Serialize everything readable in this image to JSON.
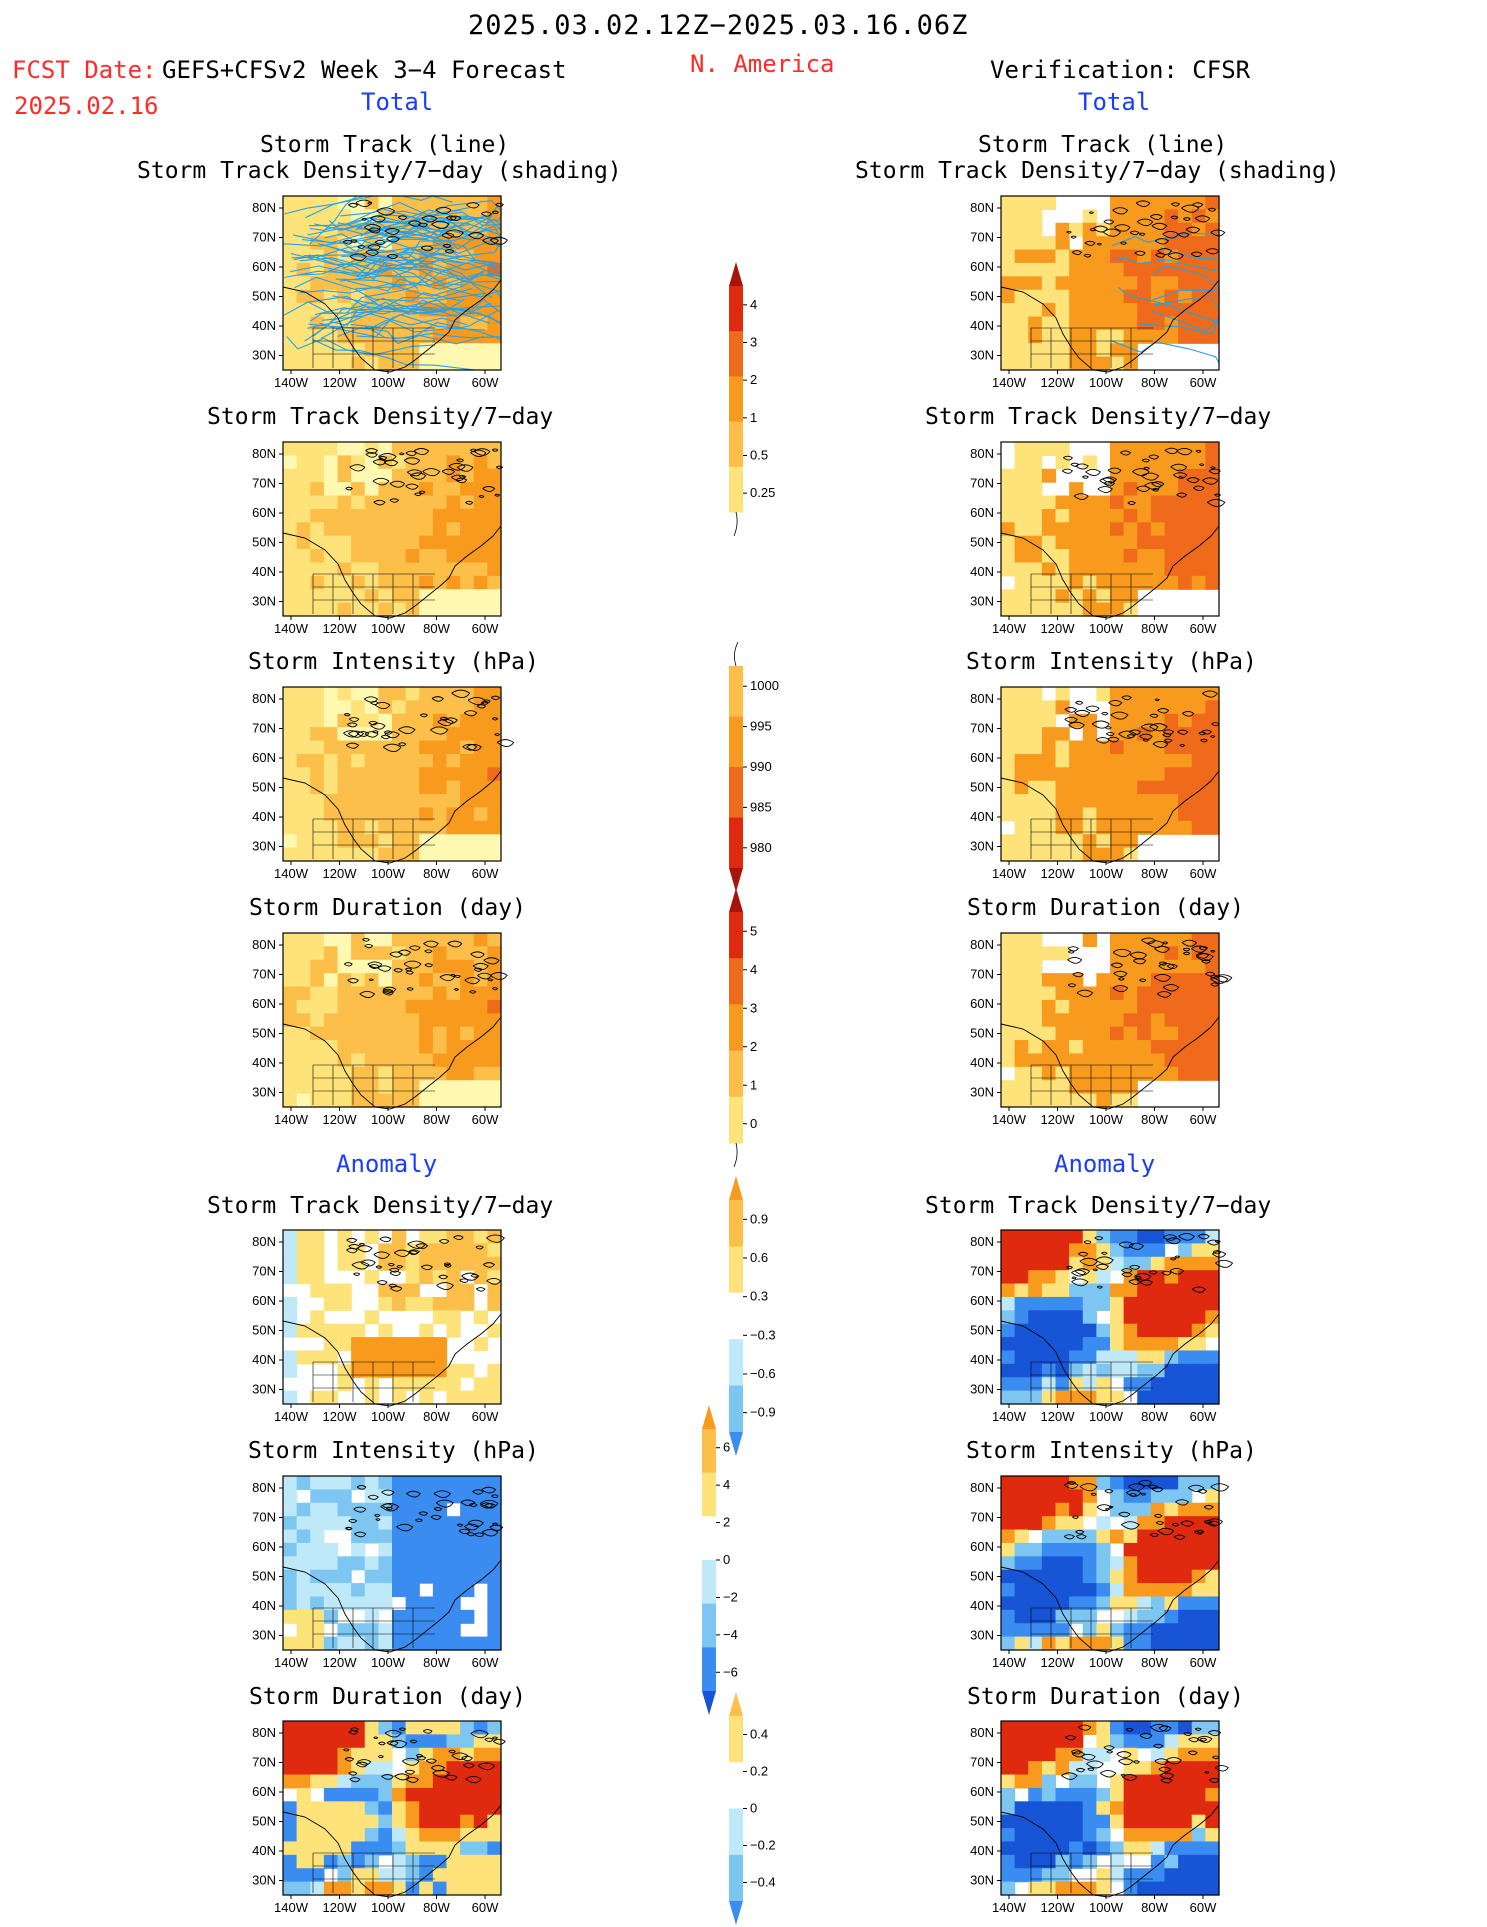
{
  "header": {
    "date_range": "2025.03.02.12Z−2025.03.16.06Z",
    "fcst_label": "FCST Date:",
    "fcst_model": "GEFS+CFSv2 Week 3−4 Forecast",
    "fcst_date": "2025.02.16",
    "region": "N. America",
    "verification": "Verification: CFSR",
    "left_total": "Total",
    "right_total": "Total",
    "left_anomaly": "Anomaly",
    "right_anomaly": "Anomaly"
  },
  "panel_titles": {
    "track_line": "Storm Track (line)",
    "track_shading": "Storm Track Density/7−day (shading)",
    "density": "Storm Track Density/7−day",
    "intensity": "Storm Intensity (hPa)",
    "duration": "Storm Duration (day)"
  },
  "axes": {
    "lat_labels": [
      "80N",
      "70N",
      "60N",
      "50N",
      "40N",
      "30N"
    ],
    "lon_labels": [
      "140W",
      "120W",
      "100W",
      "80W",
      "60W"
    ]
  },
  "colorbars": {
    "density_total": [
      "4",
      "3",
      "2",
      "1",
      "0.5",
      "0.25"
    ],
    "intensity_total": [
      "1000",
      "995",
      "990",
      "985",
      "980"
    ],
    "duration_total": [
      "5",
      "4",
      "3",
      "2",
      "1",
      "0"
    ],
    "density_anom": [
      "0.9",
      "0.6",
      "0.3",
      "−0.3",
      "−0.6",
      "−0.9"
    ],
    "intensity_anom": [
      "6",
      "4",
      "2",
      "0",
      "−2",
      "−4",
      "−6"
    ],
    "duration_anom": [
      "0.4",
      "0.2",
      "0",
      "−0.2",
      "−0.4"
    ]
  },
  "colors": {
    "pale_yellow": "#fff8b0",
    "yellow": "#fde37a",
    "light_orange": "#fbbf4a",
    "orange": "#f79a1e",
    "dark_orange": "#ef6a1a",
    "red": "#df2a10",
    "dark_red": "#a8140a",
    "light_blue": "#bfe8f8",
    "mid_blue": "#7ec6f2",
    "blue": "#3a8cf0",
    "dark_blue": "#1755d6",
    "track_line": "#2aa0e0"
  }
}
